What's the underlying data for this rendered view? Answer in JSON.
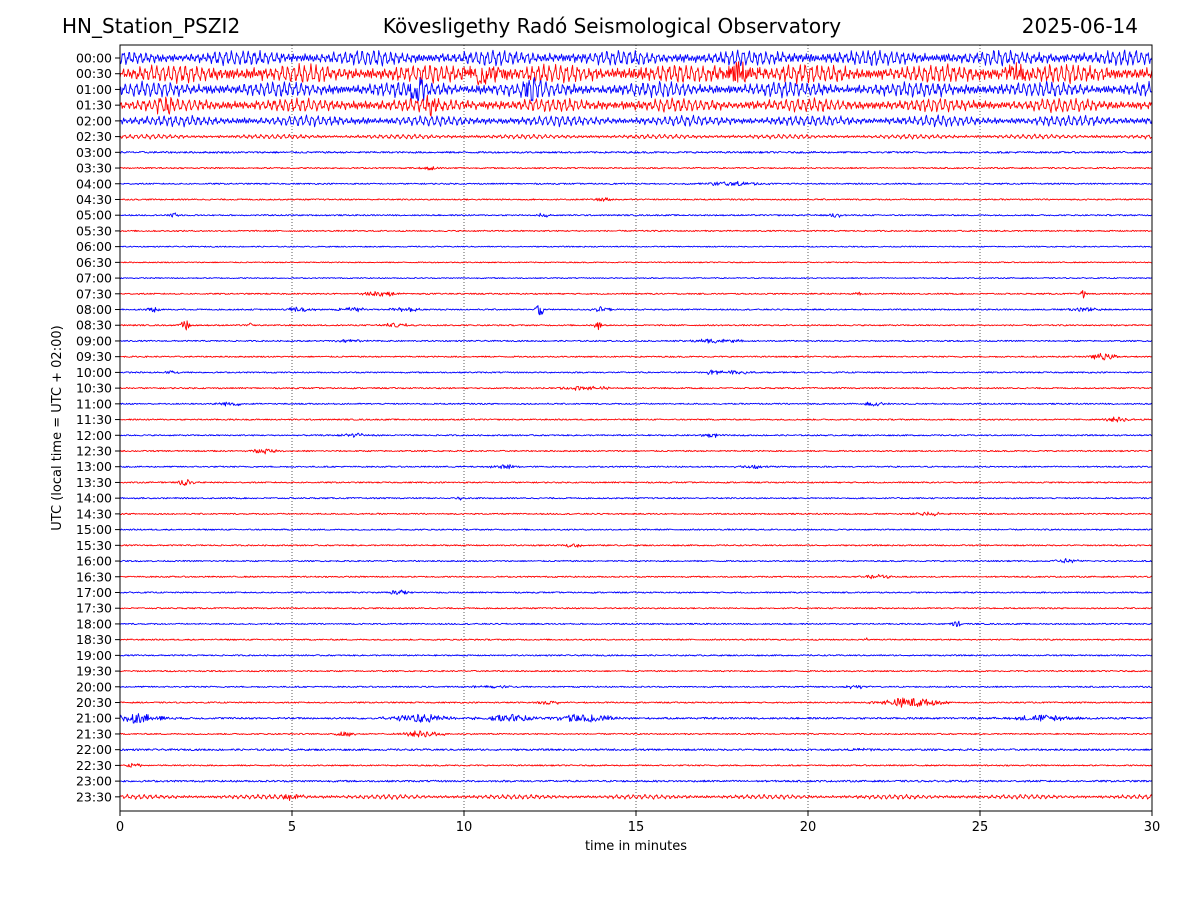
{
  "header": {
    "station": "HN_Station_PSZI2",
    "observatory": "Kövesligethy Radó Seismological Observatory",
    "date": "2025-06-14"
  },
  "chart_data": {
    "type": "line",
    "subtype": "helicorder",
    "xlabel": "time in minutes",
    "ylabel": "UTC (local time = UTC + 02:00)",
    "xlim": [
      0,
      30
    ],
    "x_ticks": [
      0,
      5,
      10,
      15,
      20,
      25,
      30
    ],
    "vertical_grid": "dotted",
    "row_labels": [
      "00:00",
      "00:30",
      "01:00",
      "01:30",
      "02:00",
      "02:30",
      "03:00",
      "03:30",
      "04:00",
      "04:30",
      "05:00",
      "05:30",
      "06:00",
      "06:30",
      "07:00",
      "07:30",
      "08:00",
      "08:30",
      "09:00",
      "09:30",
      "10:00",
      "10:30",
      "11:00",
      "11:30",
      "12:00",
      "12:30",
      "13:00",
      "13:30",
      "14:00",
      "14:30",
      "15:00",
      "15:30",
      "16:00",
      "16:30",
      "17:00",
      "17:30",
      "18:00",
      "18:30",
      "19:00",
      "19:30",
      "20:00",
      "20:30",
      "21:00",
      "21:30",
      "22:00",
      "22:30",
      "23:00",
      "23:30"
    ],
    "colors": [
      "#0000ff",
      "#ff0000"
    ],
    "row_noise": [
      10,
      12,
      10,
      9,
      7,
      3,
      2,
      1.5,
      1.5,
      1.5,
      1.5,
      1.5,
      1.2,
      1.2,
      1.2,
      1.5,
      1.5,
      1.5,
      1.5,
      1.5,
      1.5,
      1.5,
      1.5,
      1.5,
      1.5,
      1.5,
      1.5,
      1.5,
      1.5,
      1.5,
      1.5,
      1.5,
      1.5,
      1.5,
      1.5,
      1.5,
      1.5,
      1.5,
      1.5,
      1.5,
      1.5,
      1.5,
      2,
      1.5,
      2,
      1.5,
      2,
      3
    ],
    "bursts": [
      {
        "row": 1,
        "t": 10.5,
        "amp": 14,
        "dur": 0.8
      },
      {
        "row": 1,
        "t": 18,
        "amp": 12,
        "dur": 0.8
      },
      {
        "row": 1,
        "t": 26,
        "amp": 13,
        "dur": 0.6
      },
      {
        "row": 2,
        "t": 8.6,
        "amp": 12,
        "dur": 0.4
      },
      {
        "row": 2,
        "t": 11.9,
        "amp": 12,
        "dur": 0.4
      },
      {
        "row": 3,
        "t": 1.3,
        "amp": 8,
        "dur": 0.4
      },
      {
        "row": 3,
        "t": 9.1,
        "amp": 8,
        "dur": 0.4
      },
      {
        "row": 7,
        "t": 9.0,
        "amp": 3,
        "dur": 0.3
      },
      {
        "row": 8,
        "t": 17.8,
        "amp": 2.5,
        "dur": 1.2
      },
      {
        "row": 9,
        "t": 14,
        "amp": 2.5,
        "dur": 0.4
      },
      {
        "row": 10,
        "t": 1.6,
        "amp": 3,
        "dur": 0.2
      },
      {
        "row": 10,
        "t": 12.3,
        "amp": 3,
        "dur": 0.2
      },
      {
        "row": 10,
        "t": 20.8,
        "amp": 2.5,
        "dur": 0.3
      },
      {
        "row": 15,
        "t": 7.6,
        "amp": 3,
        "dur": 0.8
      },
      {
        "row": 15,
        "t": 21.5,
        "amp": 2.5,
        "dur": 0.2
      },
      {
        "row": 15,
        "t": 28,
        "amp": 5,
        "dur": 0.1
      },
      {
        "row": 16,
        "t": 1.0,
        "amp": 3,
        "dur": 0.3
      },
      {
        "row": 16,
        "t": 5.2,
        "amp": 3,
        "dur": 0.6
      },
      {
        "row": 16,
        "t": 6.7,
        "amp": 3,
        "dur": 0.6
      },
      {
        "row": 16,
        "t": 8.3,
        "amp": 3,
        "dur": 0.6
      },
      {
        "row": 16,
        "t": 12.2,
        "amp": 12,
        "dur": 0.15
      },
      {
        "row": 16,
        "t": 14.0,
        "amp": 3,
        "dur": 0.4
      },
      {
        "row": 16,
        "t": 28.0,
        "amp": 3,
        "dur": 0.6
      },
      {
        "row": 17,
        "t": 1.9,
        "amp": 10,
        "dur": 0.15
      },
      {
        "row": 17,
        "t": 3.8,
        "amp": 3,
        "dur": 0.1
      },
      {
        "row": 17,
        "t": 8.0,
        "amp": 2.5,
        "dur": 0.6
      },
      {
        "row": 17,
        "t": 13.9,
        "amp": 5,
        "dur": 0.15
      },
      {
        "row": 18,
        "t": 6.7,
        "amp": 2.5,
        "dur": 0.5
      },
      {
        "row": 18,
        "t": 17.3,
        "amp": 2.5,
        "dur": 1.0
      },
      {
        "row": 19,
        "t": 28.6,
        "amp": 4,
        "dur": 0.6
      },
      {
        "row": 20,
        "t": 1.5,
        "amp": 2.5,
        "dur": 0.3
      },
      {
        "row": 20,
        "t": 17.3,
        "amp": 5,
        "dur": 0.3
      },
      {
        "row": 20,
        "t": 17.9,
        "amp": 2.5,
        "dur": 0.6
      },
      {
        "row": 21,
        "t": 13.5,
        "amp": 2.5,
        "dur": 1.0
      },
      {
        "row": 22,
        "t": 3.2,
        "amp": 2.5,
        "dur": 0.6
      },
      {
        "row": 22,
        "t": 21.9,
        "amp": 2.5,
        "dur": 0.5
      },
      {
        "row": 23,
        "t": 29.0,
        "amp": 3,
        "dur": 0.5
      },
      {
        "row": 24,
        "t": 6.8,
        "amp": 2.5,
        "dur": 0.6
      },
      {
        "row": 24,
        "t": 17.2,
        "amp": 2.5,
        "dur": 0.4
      },
      {
        "row": 25,
        "t": 4.2,
        "amp": 3,
        "dur": 0.5
      },
      {
        "row": 26,
        "t": 11.2,
        "amp": 2.5,
        "dur": 0.6
      },
      {
        "row": 26,
        "t": 18.4,
        "amp": 2.5,
        "dur": 0.6
      },
      {
        "row": 27,
        "t": 1.9,
        "amp": 4,
        "dur": 0.3
      },
      {
        "row": 28,
        "t": 9.9,
        "amp": 3,
        "dur": 0.15
      },
      {
        "row": 29,
        "t": 23.5,
        "amp": 2,
        "dur": 0.8
      },
      {
        "row": 31,
        "t": 13.2,
        "amp": 2.5,
        "dur": 0.4
      },
      {
        "row": 32,
        "t": 27.5,
        "amp": 3,
        "dur": 0.5
      },
      {
        "row": 33,
        "t": 22.0,
        "amp": 2.5,
        "dur": 0.6
      },
      {
        "row": 34,
        "t": 8.1,
        "amp": 3,
        "dur": 0.5
      },
      {
        "row": 36,
        "t": 24.3,
        "amp": 4,
        "dur": 0.2
      },
      {
        "row": 37,
        "t": 21.7,
        "amp": 2.5,
        "dur": 0.1
      },
      {
        "row": 40,
        "t": 10.9,
        "amp": 2,
        "dur": 0.8
      },
      {
        "row": 40,
        "t": 21.4,
        "amp": 2.5,
        "dur": 0.4
      },
      {
        "row": 41,
        "t": 23.0,
        "amp": 6,
        "dur": 1.2
      },
      {
        "row": 41,
        "t": 12.5,
        "amp": 2,
        "dur": 0.6
      },
      {
        "row": 42,
        "t": 0.5,
        "amp": 6,
        "dur": 1.0
      },
      {
        "row": 42,
        "t": 8.7,
        "amp": 5,
        "dur": 1.2
      },
      {
        "row": 42,
        "t": 11.3,
        "amp": 5,
        "dur": 1.0
      },
      {
        "row": 42,
        "t": 13.5,
        "amp": 5,
        "dur": 1.2
      },
      {
        "row": 42,
        "t": 26.8,
        "amp": 4,
        "dur": 1.2
      },
      {
        "row": 43,
        "t": 6.5,
        "amp": 3,
        "dur": 0.4
      },
      {
        "row": 43,
        "t": 8.8,
        "amp": 4,
        "dur": 0.8
      },
      {
        "row": 44,
        "t": 21.7,
        "amp": 2,
        "dur": 0.4
      },
      {
        "row": 45,
        "t": 0.4,
        "amp": 2.5,
        "dur": 0.3
      },
      {
        "row": 47,
        "t": 5.0,
        "amp": 4,
        "dur": 0.5
      }
    ]
  }
}
